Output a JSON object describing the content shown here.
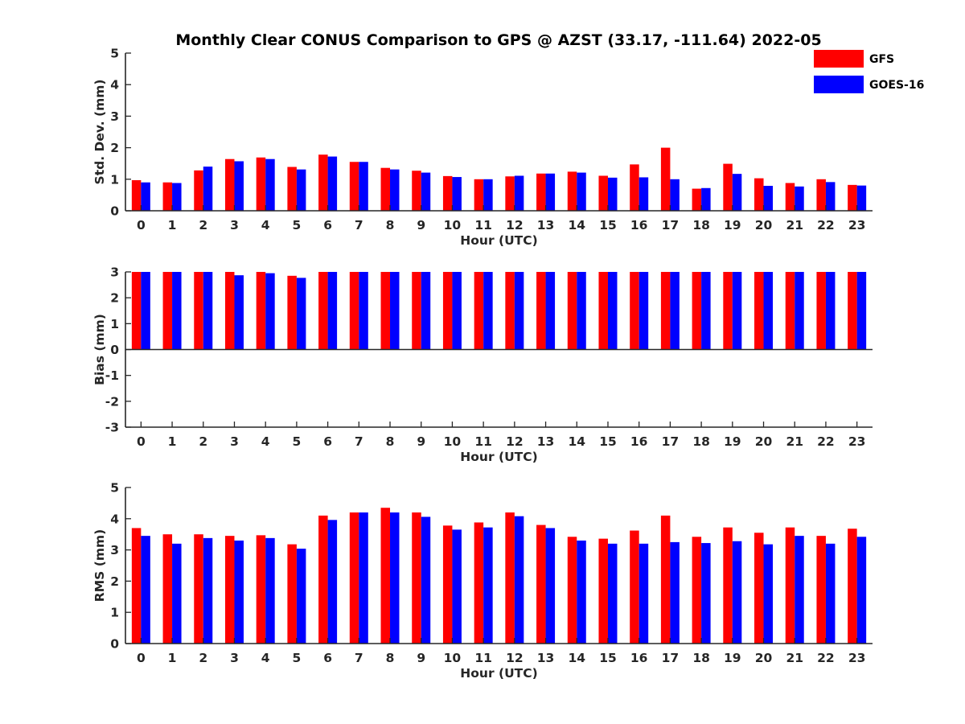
{
  "title": "Monthly Clear CONUS Comparison to GPS @ AZST (33.17, -111.64) 2022-05",
  "colors": {
    "GFS": "#ff0000",
    "GOES-16": "#0000ff",
    "axis": "#262626"
  },
  "legend": [
    {
      "name": "GFS",
      "color": "#ff0000"
    },
    {
      "name": "GOES-16",
      "color": "#0000ff"
    }
  ],
  "chart_data": [
    {
      "type": "bar",
      "xlabel": "Hour (UTC)",
      "ylabel": "Std. Dev. (mm)",
      "ylim": [
        0,
        5
      ],
      "yticks": [
        0,
        1,
        2,
        3,
        4,
        5
      ],
      "categories": [
        "0",
        "1",
        "2",
        "3",
        "4",
        "5",
        "6",
        "7",
        "8",
        "9",
        "10",
        "11",
        "12",
        "13",
        "14",
        "15",
        "16",
        "17",
        "18",
        "19",
        "20",
        "21",
        "22",
        "23"
      ],
      "series": [
        {
          "name": "GFS",
          "values": [
            0.97,
            0.9,
            1.28,
            1.64,
            1.69,
            1.39,
            1.78,
            1.55,
            1.36,
            1.27,
            1.1,
            1.0,
            1.09,
            1.18,
            1.24,
            1.11,
            1.47,
            2.0,
            0.7,
            1.49,
            1.03,
            0.88,
            1.0,
            0.82
          ]
        },
        {
          "name": "GOES-16",
          "values": [
            0.9,
            0.88,
            1.4,
            1.57,
            1.64,
            1.31,
            1.72,
            1.55,
            1.31,
            1.21,
            1.07,
            1.0,
            1.11,
            1.18,
            1.21,
            1.05,
            1.06,
            1.0,
            0.72,
            1.17,
            0.79,
            0.77,
            0.91,
            0.8
          ]
        }
      ]
    },
    {
      "type": "bar",
      "xlabel": "Hour (UTC)",
      "ylabel": "Bias (mm)",
      "ylim": [
        -3,
        3
      ],
      "yticks": [
        -3,
        -2,
        -1,
        0,
        1,
        2,
        3
      ],
      "categories": [
        "0",
        "1",
        "2",
        "3",
        "4",
        "5",
        "6",
        "7",
        "8",
        "9",
        "10",
        "11",
        "12",
        "13",
        "14",
        "15",
        "16",
        "17",
        "18",
        "19",
        "20",
        "21",
        "22",
        "23"
      ],
      "series": [
        {
          "name": "GFS",
          "values": [
            3,
            3,
            3,
            3,
            3,
            2.85,
            3,
            3,
            3,
            3,
            3,
            3,
            3,
            3,
            3,
            3,
            3,
            3,
            3,
            3,
            3,
            3,
            3,
            3
          ]
        },
        {
          "name": "GOES-16",
          "values": [
            3,
            3,
            3,
            2.87,
            2.95,
            2.77,
            3,
            3,
            3,
            3,
            3,
            3,
            3,
            3,
            3,
            3,
            3,
            3,
            3,
            3,
            3,
            3,
            3,
            3
          ]
        }
      ]
    },
    {
      "type": "bar",
      "xlabel": "Hour (UTC)",
      "ylabel": "RMS (mm)",
      "ylim": [
        0,
        5
      ],
      "yticks": [
        0,
        1,
        2,
        3,
        4,
        5
      ],
      "categories": [
        "0",
        "1",
        "2",
        "3",
        "4",
        "5",
        "6",
        "7",
        "8",
        "9",
        "10",
        "11",
        "12",
        "13",
        "14",
        "15",
        "16",
        "17",
        "18",
        "19",
        "20",
        "21",
        "22",
        "23"
      ],
      "series": [
        {
          "name": "GFS",
          "values": [
            3.7,
            3.5,
            3.5,
            3.45,
            3.47,
            3.18,
            4.1,
            4.2,
            4.35,
            4.2,
            3.78,
            3.88,
            4.2,
            3.8,
            3.42,
            3.36,
            3.62,
            4.1,
            3.42,
            3.72,
            3.55,
            3.72,
            3.45,
            3.68
          ]
        },
        {
          "name": "GOES-16",
          "values": [
            3.45,
            3.2,
            3.38,
            3.3,
            3.38,
            3.04,
            3.96,
            4.2,
            4.2,
            4.06,
            3.65,
            3.72,
            4.08,
            3.7,
            3.3,
            3.2,
            3.2,
            3.25,
            3.22,
            3.28,
            3.18,
            3.45,
            3.2,
            3.42
          ]
        }
      ]
    }
  ]
}
